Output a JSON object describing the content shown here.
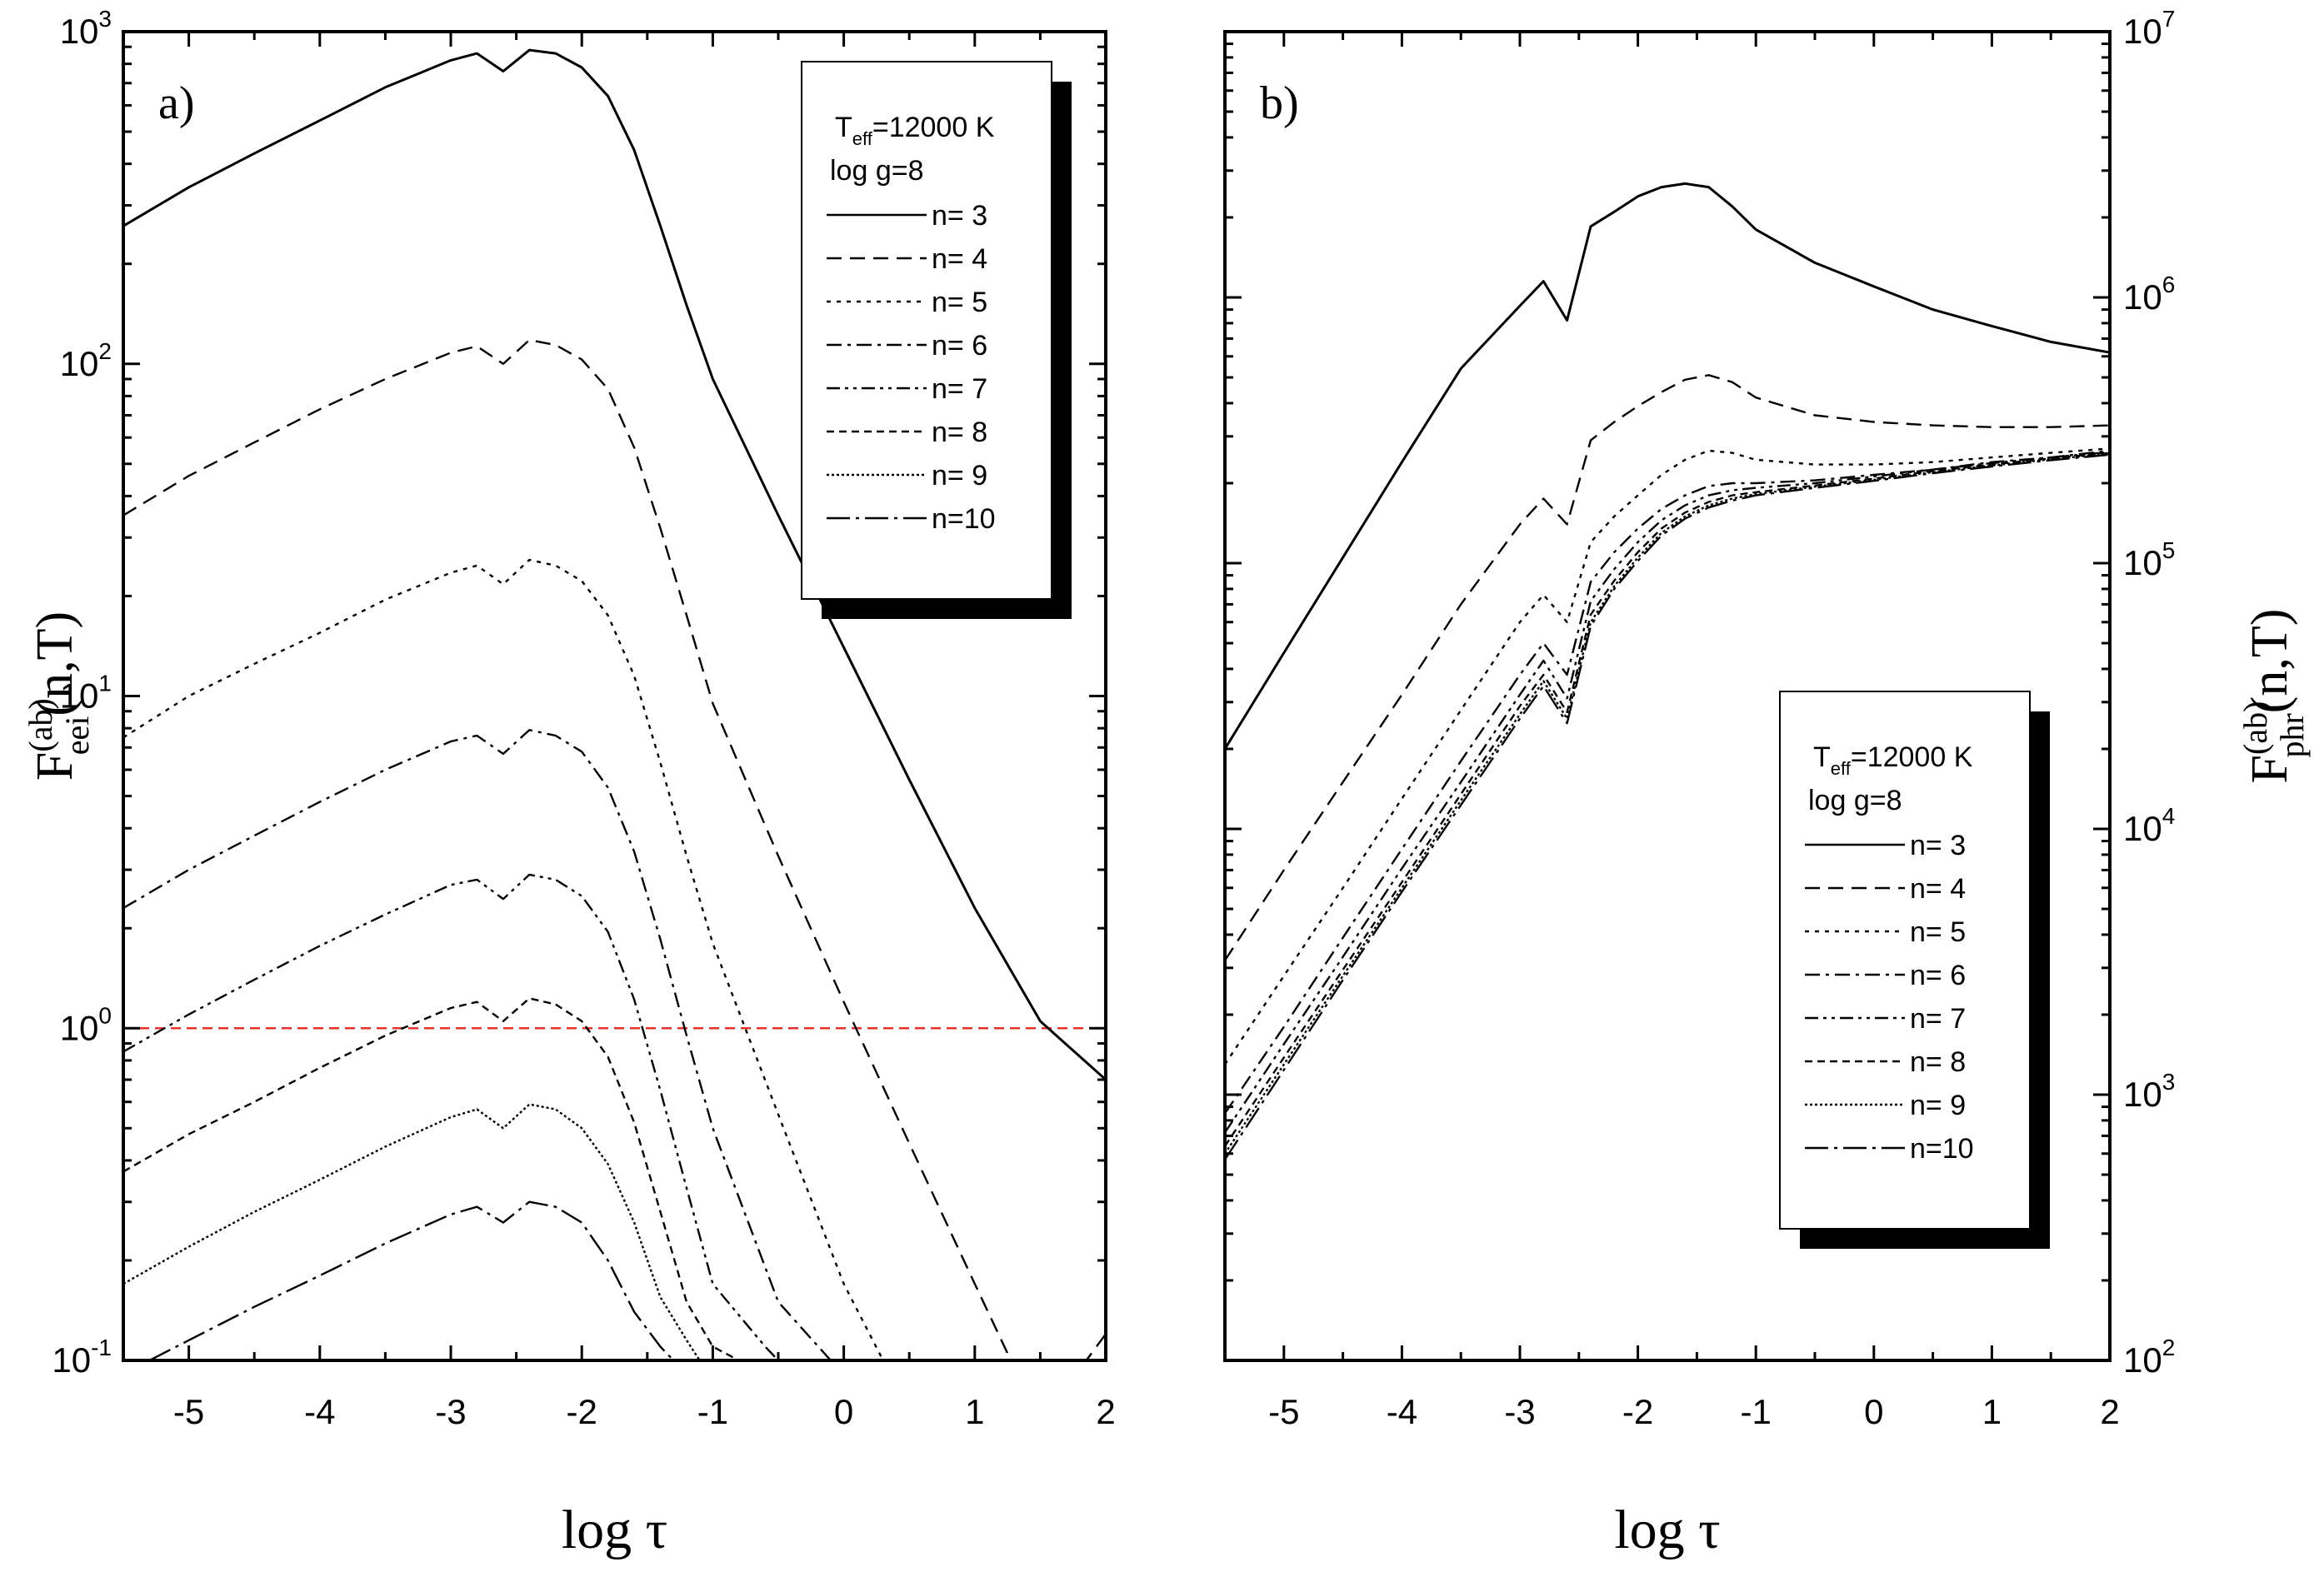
{
  "chart_data": [
    {
      "type": "line",
      "panel_label": "a)",
      "xlabel": "log τ",
      "ylabel": {
        "base": "F",
        "superscript": "(ab)",
        "subscript": "eei",
        "suffix": "(n,T)"
      },
      "y_scale": "log",
      "xlim": [
        -5.5,
        2
      ],
      "ylim": [
        0.1,
        1000
      ],
      "x_ticks": [
        -5,
        -4,
        -3,
        -2,
        -1,
        0,
        1,
        2
      ],
      "x_tick_labels": [
        "-5",
        "-4",
        "-3",
        "-2",
        "-1",
        "0",
        "1",
        "2"
      ],
      "y_ticks": [
        {
          "base": "10",
          "exp": "-1",
          "value": 0.1
        },
        {
          "base": "10",
          "exp": "0",
          "value": 1
        },
        {
          "base": "10",
          "exp": "1",
          "value": 10
        },
        {
          "base": "10",
          "exp": "2",
          "value": 100
        },
        {
          "base": "10",
          "exp": "3",
          "value": 1000
        }
      ],
      "reference_line": {
        "y": 1,
        "color": "#e8322e",
        "style": "dashed"
      },
      "legend": {
        "placement": "top-right",
        "title_base": "T",
        "title_sub": "eff",
        "title_rest": "=12000 K",
        "subtitle": "log g=8"
      },
      "series": [
        {
          "name": "n= 3",
          "dash": "solid",
          "x": [
            -5.5,
            -5,
            -4.5,
            -4,
            -3.5,
            -3,
            -2.8,
            -2.6,
            -2.4,
            -2.2,
            -2,
            -1.8,
            -1.6,
            -1.4,
            -1.2,
            -1,
            -0.5,
            0,
            0.5,
            1,
            1.5,
            2
          ],
          "y": [
            260,
            340,
            430,
            540,
            680,
            820,
            860,
            760,
            880,
            860,
            780,
            640,
            440,
            260,
            150,
            90,
            35,
            14,
            5.6,
            2.3,
            1.05,
            0.7
          ]
        },
        {
          "name": "n= 4",
          "dash": "dashed",
          "x": [
            -5.5,
            -5,
            -4.5,
            -4,
            -3.5,
            -3,
            -2.8,
            -2.6,
            -2.4,
            -2.2,
            -2,
            -1.8,
            -1.6,
            -1.4,
            -1.2,
            -1,
            -0.5,
            0,
            0.5,
            1,
            1.5,
            2
          ],
          "y": [
            35,
            46,
            58,
            73,
            90,
            108,
            113,
            100,
            118,
            114,
            103,
            84,
            56,
            32,
            17.5,
            9.5,
            3.3,
            1.2,
            0.45,
            0.17,
            0.065,
            0.12
          ]
        },
        {
          "name": "n= 5",
          "dash": "dotted",
          "x": [
            -5.5,
            -5,
            -4.5,
            -4,
            -3.5,
            -3,
            -2.8,
            -2.6,
            -2.4,
            -2.2,
            -2,
            -1.8,
            -1.6,
            -1.4,
            -1.2,
            -1,
            -0.5,
            0,
            0.3
          ],
          "y": [
            7.5,
            10,
            12.5,
            15.5,
            19.5,
            23.5,
            24.7,
            21.7,
            25.7,
            24.7,
            22.2,
            17.5,
            11.5,
            6.3,
            3.3,
            1.8,
            0.55,
            0.17,
            0.1
          ]
        },
        {
          "name": "n= 6",
          "dash": "dashdot",
          "x": [
            -5.5,
            -5,
            -4.5,
            -4,
            -3.5,
            -3,
            -2.8,
            -2.6,
            -2.4,
            -2.2,
            -2,
            -1.8,
            -1.6,
            -1.4,
            -1.2,
            -1,
            -0.5,
            -0.1
          ],
          "y": [
            2.3,
            3.0,
            3.8,
            4.8,
            6.0,
            7.3,
            7.6,
            6.7,
            7.9,
            7.6,
            6.8,
            5.3,
            3.4,
            1.85,
            0.95,
            0.5,
            0.15,
            0.1
          ]
        },
        {
          "name": "n= 7",
          "dash": "dashdotdot",
          "x": [
            -5.5,
            -5,
            -4.5,
            -4,
            -3.5,
            -3,
            -2.8,
            -2.6,
            -2.4,
            -2.2,
            -2,
            -1.8,
            -1.6,
            -1.4,
            -1.2,
            -1,
            -0.6,
            -0.5
          ],
          "y": [
            0.85,
            1.1,
            1.4,
            1.77,
            2.2,
            2.7,
            2.8,
            2.45,
            2.9,
            2.8,
            2.5,
            1.95,
            1.22,
            0.65,
            0.33,
            0.17,
            0.11,
            0.1
          ]
        },
        {
          "name": "n= 8",
          "dash": "shortdash",
          "x": [
            -5.5,
            -5,
            -4.5,
            -4,
            -3.5,
            -3,
            -2.8,
            -2.6,
            -2.4,
            -2.2,
            -2,
            -1.8,
            -1.6,
            -1.4,
            -1.2,
            -1,
            -0.8
          ],
          "y": [
            0.37,
            0.48,
            0.6,
            0.76,
            0.95,
            1.15,
            1.2,
            1.05,
            1.23,
            1.18,
            1.05,
            0.82,
            0.52,
            0.28,
            0.15,
            0.11,
            0.1
          ]
        },
        {
          "name": "n= 9",
          "dash": "densedot",
          "x": [
            -5.5,
            -5,
            -4.5,
            -4,
            -3.5,
            -3,
            -2.8,
            -2.6,
            -2.4,
            -2.2,
            -2,
            -1.8,
            -1.6,
            -1.4,
            -1.2,
            -1.1
          ],
          "y": [
            0.17,
            0.22,
            0.28,
            0.35,
            0.44,
            0.54,
            0.57,
            0.5,
            0.59,
            0.57,
            0.5,
            0.39,
            0.26,
            0.155,
            0.115,
            0.1
          ]
        },
        {
          "name": "n=10",
          "dash": "longdashdot",
          "x": [
            -5.3,
            -5,
            -4.5,
            -4,
            -3.5,
            -3,
            -2.8,
            -2.6,
            -2.4,
            -2.2,
            -2,
            -1.8,
            -1.6,
            -1.4,
            -1.3
          ],
          "y": [
            0.1,
            0.115,
            0.145,
            0.18,
            0.225,
            0.275,
            0.29,
            0.26,
            0.3,
            0.29,
            0.26,
            0.2,
            0.14,
            0.11,
            0.1
          ]
        }
      ]
    },
    {
      "type": "line",
      "panel_label": "b)",
      "xlabel": "log τ",
      "ylabel": {
        "base": "F",
        "superscript": "(ab)",
        "subscript": "phr",
        "suffix": "(n,T)"
      },
      "y_scale": "log",
      "xlim": [
        -5.5,
        2
      ],
      "ylim": [
        100,
        10000000
      ],
      "x_ticks": [
        -5,
        -4,
        -3,
        -2,
        -1,
        0,
        1,
        2
      ],
      "x_tick_labels": [
        "-5",
        "-4",
        "-3",
        "-2",
        "-1",
        "0",
        "1",
        "2"
      ],
      "y_ticks": [
        {
          "base": "10",
          "exp": "2",
          "value": 100
        },
        {
          "base": "10",
          "exp": "3",
          "value": 1000
        },
        {
          "base": "10",
          "exp": "4",
          "value": 10000
        },
        {
          "base": "10",
          "exp": "5",
          "value": 100000
        },
        {
          "base": "10",
          "exp": "6",
          "value": 1000000
        },
        {
          "base": "10",
          "exp": "7",
          "value": 10000000
        }
      ],
      "legend": {
        "placement": "bottom-right",
        "title_base": "T",
        "title_sub": "eff",
        "title_rest": "=12000 K",
        "subtitle": "log g=8"
      },
      "series": [
        {
          "name": "n= 3",
          "dash": "solid",
          "x": [
            -5.5,
            -5,
            -4.5,
            -4,
            -3.5,
            -3,
            -2.8,
            -2.6,
            -2.4,
            -2.2,
            -2,
            -1.8,
            -1.6,
            -1.4,
            -1.2,
            -1,
            -0.5,
            0,
            0.5,
            1,
            1.5,
            2
          ],
          "y": [
            20000,
            46000,
            105000,
            240000,
            540000,
            930000,
            1150000,
            820000,
            1850000,
            2100000,
            2400000,
            2600000,
            2680000,
            2600000,
            2200000,
            1800000,
            1350000,
            1100000,
            900000,
            780000,
            680000,
            620000
          ]
        },
        {
          "name": "n= 4",
          "dash": "dashed",
          "x": [
            -5.5,
            -5,
            -4.5,
            -4,
            -3.5,
            -3,
            -2.8,
            -2.6,
            -2.4,
            -2.2,
            -2,
            -1.8,
            -1.6,
            -1.4,
            -1.2,
            -1,
            -0.5,
            0,
            0.5,
            1,
            1.5,
            2
          ],
          "y": [
            3200,
            7000,
            15000,
            32000,
            70000,
            140000,
            175000,
            140000,
            290000,
            340000,
            390000,
            440000,
            490000,
            510000,
            480000,
            420000,
            360000,
            340000,
            330000,
            325000,
            325000,
            330000
          ]
        },
        {
          "name": "n= 5",
          "dash": "dotted",
          "x": [
            -5.5,
            -5,
            -4.5,
            -4,
            -3.5,
            -3,
            -2.8,
            -2.6,
            -2.4,
            -2.2,
            -2,
            -1.8,
            -1.6,
            -1.4,
            -1.2,
            -1,
            -0.5,
            0,
            0.5,
            1,
            1.5,
            2
          ],
          "y": [
            1300,
            2800,
            6000,
            13000,
            28000,
            60000,
            76000,
            60000,
            120000,
            150000,
            180000,
            215000,
            245000,
            265000,
            260000,
            245000,
            235000,
            235000,
            240000,
            250000,
            260000,
            270000
          ]
        },
        {
          "name": "n= 6",
          "dash": "dashdot",
          "x": [
            -5.5,
            -5,
            -4.5,
            -4,
            -3.5,
            -3,
            -2.8,
            -2.6,
            -2.4,
            -2.2,
            -2,
            -1.8,
            -1.6,
            -1.4,
            -1.2,
            -1,
            -0.5,
            0,
            0.5,
            1,
            1.5,
            2
          ],
          "y": [
            850,
            1800,
            3900,
            8400,
            18000,
            38000,
            50000,
            38000,
            85000,
            110000,
            135000,
            160000,
            180000,
            195000,
            200000,
            200000,
            205000,
            215000,
            225000,
            240000,
            250000,
            265000
          ]
        },
        {
          "name": "n= 7",
          "dash": "dashdotdot",
          "x": [
            -5.5,
            -5,
            -4.5,
            -4,
            -3.5,
            -3,
            -2.8,
            -2.6,
            -2.4,
            -2.2,
            -2,
            -1.8,
            -1.6,
            -1.4,
            -1.2,
            -1,
            -0.5,
            0,
            0.5,
            1,
            1.5,
            2
          ],
          "y": [
            720,
            1550,
            3300,
            7100,
            15000,
            32000,
            43000,
            31000,
            72000,
            95000,
            120000,
            145000,
            165000,
            180000,
            188000,
            192000,
            200000,
            212000,
            225000,
            238000,
            250000,
            262000
          ]
        },
        {
          "name": "n= 8",
          "dash": "shortdash",
          "x": [
            -5.5,
            -5,
            -4.5,
            -4,
            -3.5,
            -3,
            -2.8,
            -2.6,
            -2.4,
            -2.2,
            -2,
            -1.8,
            -1.6,
            -1.4,
            -1.2,
            -1,
            -0.5,
            0,
            0.5,
            1,
            1.5,
            2
          ],
          "y": [
            640,
            1380,
            2950,
            6300,
            13500,
            29000,
            38000,
            27500,
            64000,
            86000,
            110000,
            135000,
            155000,
            170000,
            180000,
            185000,
            196000,
            208000,
            222000,
            235000,
            248000,
            260000
          ]
        },
        {
          "name": "n= 9",
          "dash": "densedot",
          "x": [
            -5.5,
            -5,
            -4.5,
            -4,
            -3.5,
            -3,
            -2.8,
            -2.6,
            -2.4,
            -2.2,
            -2,
            -1.8,
            -1.6,
            -1.4,
            -1.2,
            -1,
            -0.5,
            0,
            0.5,
            1,
            1.5,
            2
          ],
          "y": [
            600,
            1300,
            2800,
            6000,
            12800,
            27000,
            36000,
            26000,
            60000,
            82000,
            105000,
            130000,
            150000,
            165000,
            175000,
            182000,
            194000,
            206000,
            220000,
            233000,
            246000,
            258000
          ]
        },
        {
          "name": "n=10",
          "dash": "longdashdot",
          "x": [
            -5.5,
            -5,
            -4.5,
            -4,
            -3.5,
            -3,
            -2.8,
            -2.6,
            -2.4,
            -2.2,
            -2,
            -1.8,
            -1.6,
            -1.4,
            -1.2,
            -1,
            -0.5,
            0,
            0.5,
            1,
            1.5,
            2
          ],
          "y": [
            570,
            1240,
            2700,
            5800,
            12300,
            26000,
            34500,
            25000,
            58000,
            80000,
            102000,
            127000,
            147000,
            162000,
            172000,
            180000,
            192000,
            204000,
            218000,
            231000,
            244000,
            256000
          ]
        }
      ]
    }
  ]
}
